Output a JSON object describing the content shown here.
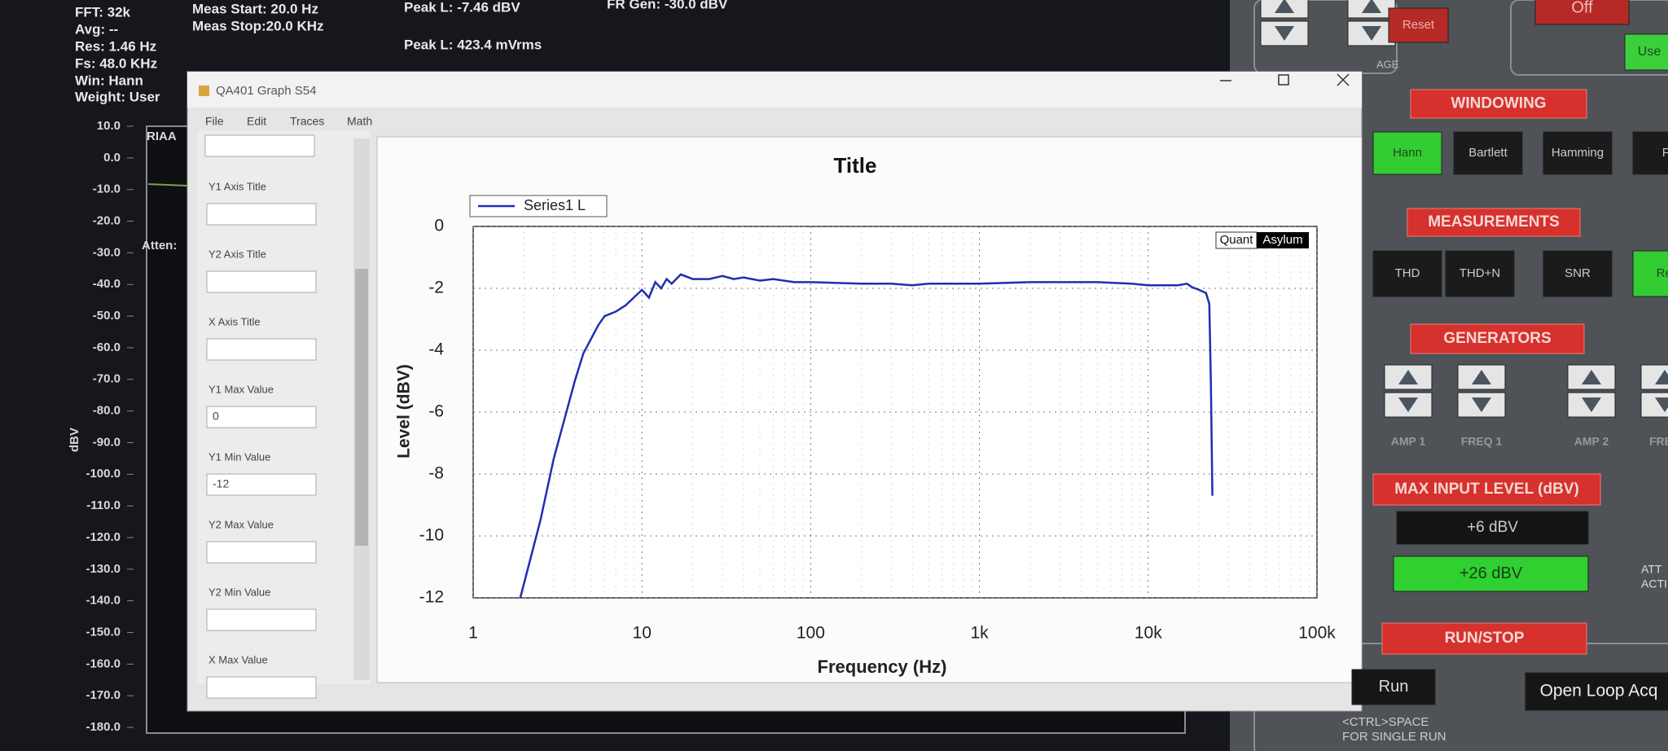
{
  "status": {
    "fft": "FFT: 32k",
    "avg": "Avg: --",
    "res": "Res: 1.46 Hz",
    "fs": "Fs: 48.0 KHz",
    "win": "Win: Hann",
    "weight": "Weight: User",
    "meas_start": "Meas Start: 20.0 Hz",
    "meas_stop": "Meas Stop:20.0 KHz",
    "peak_dbv": "Peak L: -7.46 dBV",
    "peak_vrms": "Peak L: 423.4 mVrms",
    "fr_gen": "FR Gen: -30.0  dBV"
  },
  "background_chart": {
    "y_label": "dBV",
    "trace_label": "RIAA",
    "atten": "Atten:",
    "ylim": [
      -180,
      10
    ],
    "yticks": [
      {
        "value": 10,
        "label": "10.0"
      },
      {
        "value": 0,
        "label": "0.0"
      },
      {
        "value": -10,
        "label": "-10.0"
      },
      {
        "value": -20,
        "label": "-20.0"
      },
      {
        "value": -30,
        "label": "-30.0"
      },
      {
        "value": -40,
        "label": "-40.0"
      },
      {
        "value": -50,
        "label": "-50.0"
      },
      {
        "value": -60,
        "label": "-60.0"
      },
      {
        "value": -70,
        "label": "-70.0"
      },
      {
        "value": -80,
        "label": "-80.0"
      },
      {
        "value": -90,
        "label": "-90.0"
      },
      {
        "value": -100,
        "label": "-100.0"
      },
      {
        "value": -110,
        "label": "-110.0"
      },
      {
        "value": -120,
        "label": "-120.0"
      },
      {
        "value": -130,
        "label": "-130.0"
      },
      {
        "value": -140,
        "label": "-140.0"
      },
      {
        "value": -150,
        "label": "-150.0"
      },
      {
        "value": -160,
        "label": "-160.0"
      },
      {
        "value": -170,
        "label": "-170.0"
      },
      {
        "value": -180,
        "label": "-180.0"
      }
    ]
  },
  "dialog": {
    "title": "QA401 Graph S54",
    "menu": [
      "File",
      "Edit",
      "Traces",
      "Math"
    ],
    "fields": [
      {
        "label": "Y1 Axis Title"
      },
      {
        "label": "Y2 Axis Title"
      },
      {
        "label": "X Axis Title"
      },
      {
        "label": "Y1 Max Value",
        "value": "0"
      },
      {
        "label": "Y1 Min Value",
        "value": "-12"
      },
      {
        "label": "Y2 Max Value"
      },
      {
        "label": "Y2 Min Value"
      },
      {
        "label": "X Max Value"
      }
    ]
  },
  "controls": {
    "top": {
      "reset": "Reset",
      "off": "Off",
      "use": "Use",
      "page": "AGE"
    },
    "windowing": {
      "title": "WINDOWING",
      "buttons": [
        "Hann",
        "Bartlett",
        "Hamming",
        "Fl"
      ]
    },
    "measurements": {
      "title": "MEASUREMENTS",
      "buttons": [
        "THD",
        "THD+N",
        "SNR",
        "Res"
      ]
    },
    "generators": {
      "title": "GENERATORS",
      "labels": [
        "AMP 1",
        "FREQ 1",
        "AMP 2",
        "FREC"
      ]
    },
    "max_input": {
      "title": "MAX INPUT LEVEL (dBV)",
      "low": "+6 dBV",
      "high": "+26 dBV",
      "att": "ATT",
      "act": "ACTI"
    },
    "run_stop": {
      "title": "RUN/STOP",
      "run": "Run",
      "open_loop": "Open Loop Acq",
      "hint1": "<CTRL>SPACE",
      "hint2": "FOR SINGLE RUN"
    }
  },
  "chart_data": {
    "type": "line",
    "title": "Title",
    "x_label": "Frequency (Hz)",
    "y_label": "Level (dBV)",
    "annotations": [
      "Quant",
      "Asylum"
    ],
    "log_x": true,
    "grid": true,
    "legend": "top-left",
    "xlim": [
      1,
      100000
    ],
    "xticks": [
      1,
      10,
      100,
      {
        "value": 1000,
        "label": "1k"
      },
      {
        "value": 10000,
        "label": "10k"
      },
      {
        "value": 100000,
        "label": "100k"
      }
    ],
    "ylim": [
      -12,
      0
    ],
    "yticks": [
      -12,
      -10,
      -8,
      -6,
      -4,
      -2,
      0
    ],
    "x": [
      1.9,
      2.5,
      3,
      4,
      4.5,
      5.5,
      6,
      7,
      8,
      10,
      11,
      12,
      13,
      14,
      15,
      17,
      20,
      25,
      30,
      35,
      40,
      50,
      60,
      80,
      100,
      200,
      300,
      400,
      500,
      1000,
      2000,
      3000,
      5000,
      8000,
      10000,
      15000,
      17000,
      18000,
      20000,
      22000,
      23000,
      23500,
      24000
    ],
    "series": [
      {
        "name": "Series1 L",
        "color": "#1f2fb0",
        "values": [
          -12,
          -9.5,
          -7.5,
          -5,
          -4.1,
          -3.2,
          -2.9,
          -2.75,
          -2.55,
          -2.05,
          -2.3,
          -1.8,
          -2.0,
          -1.7,
          -1.85,
          -1.55,
          -1.7,
          -1.7,
          -1.6,
          -1.7,
          -1.65,
          -1.75,
          -1.7,
          -1.8,
          -1.8,
          -1.85,
          -1.85,
          -1.9,
          -1.85,
          -1.85,
          -1.8,
          -1.8,
          -1.8,
          -1.85,
          -1.9,
          -1.9,
          -1.85,
          -1.95,
          -2.05,
          -2.15,
          -2.5,
          -5,
          -8.7
        ]
      }
    ]
  }
}
